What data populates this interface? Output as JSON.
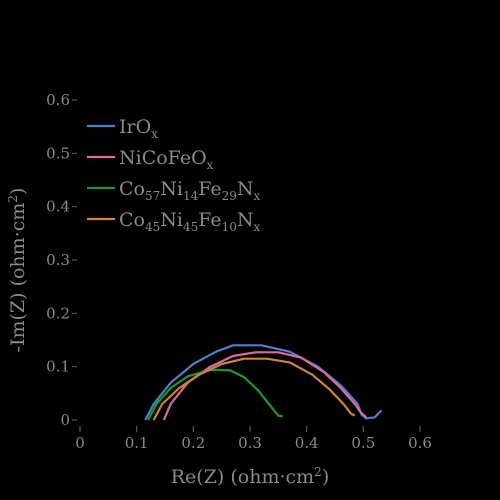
{
  "chart_data": {
    "type": "line",
    "xlabel": "Re(Z) (ohm·cm²)",
    "ylabel": "-Im(Z) (ohm·cm²)",
    "xlim": [
      0,
      0.6
    ],
    "ylim": [
      0,
      0.6
    ],
    "xticks": [
      "0",
      "0.1",
      "0.2",
      "0.3",
      "0.4",
      "0.5",
      "0.6"
    ],
    "yticks": [
      "0",
      "0.1",
      "0.2",
      "0.3",
      "0.4",
      "0.5",
      "0.6"
    ],
    "grid": false,
    "legend_position": "top-left",
    "series": [
      {
        "name": "IrOx",
        "label_parts": [
          [
            "Ir",
            ""
          ],
          [
            "O",
            ""
          ],
          [
            "x",
            "sub"
          ]
        ],
        "color": "#4a80ce",
        "points": [
          [
            0.115,
            0.0
          ],
          [
            0.13,
            0.03
          ],
          [
            0.16,
            0.07
          ],
          [
            0.2,
            0.105
          ],
          [
            0.24,
            0.128
          ],
          [
            0.27,
            0.14
          ],
          [
            0.32,
            0.14
          ],
          [
            0.37,
            0.128
          ],
          [
            0.42,
            0.1
          ],
          [
            0.46,
            0.065
          ],
          [
            0.49,
            0.03
          ],
          [
            0.497,
            0.01
          ],
          [
            0.505,
            0.003
          ],
          [
            0.52,
            0.005
          ],
          [
            0.532,
            0.018
          ]
        ]
      },
      {
        "name": "NiCoFeOx",
        "label_parts": [
          [
            "NiCoFeO",
            ""
          ],
          [
            "x",
            "sub"
          ]
        ],
        "color": "#e06aa0",
        "points": [
          [
            0.148,
            0.0
          ],
          [
            0.16,
            0.03
          ],
          [
            0.19,
            0.07
          ],
          [
            0.23,
            0.1
          ],
          [
            0.27,
            0.12
          ],
          [
            0.31,
            0.127
          ],
          [
            0.35,
            0.127
          ],
          [
            0.39,
            0.117
          ],
          [
            0.43,
            0.09
          ],
          [
            0.46,
            0.06
          ],
          [
            0.485,
            0.03
          ],
          [
            0.495,
            0.015
          ],
          [
            0.505,
            0.005
          ]
        ]
      },
      {
        "name": "Co57Ni14Fe29Nx",
        "label_parts": [
          [
            "Co",
            ""
          ],
          [
            "57",
            "sub"
          ],
          [
            "Ni",
            ""
          ],
          [
            "14",
            "sub"
          ],
          [
            "Fe",
            ""
          ],
          [
            "29",
            "sub"
          ],
          [
            "N",
            ""
          ],
          [
            "x",
            "sub"
          ]
        ],
        "color": "#1b9a2a",
        "points": [
          [
            0.12,
            0.0
          ],
          [
            0.135,
            0.03
          ],
          [
            0.16,
            0.06
          ],
          [
            0.19,
            0.082
          ],
          [
            0.23,
            0.094
          ],
          [
            0.265,
            0.093
          ],
          [
            0.29,
            0.08
          ],
          [
            0.315,
            0.055
          ],
          [
            0.335,
            0.028
          ],
          [
            0.35,
            0.008
          ],
          [
            0.358,
            0.007
          ]
        ]
      },
      {
        "name": "Co45Ni45Fe10Nx",
        "label_parts": [
          [
            "Co",
            ""
          ],
          [
            "45",
            "sub"
          ],
          [
            "Ni",
            ""
          ],
          [
            "45",
            "sub"
          ],
          [
            "Fe",
            ""
          ],
          [
            "10",
            "sub"
          ],
          [
            "N",
            ""
          ],
          [
            "x",
            "sub"
          ]
        ],
        "color": "#d2862a",
        "points": [
          [
            0.13,
            0.0
          ],
          [
            0.145,
            0.03
          ],
          [
            0.175,
            0.06
          ],
          [
            0.21,
            0.085
          ],
          [
            0.25,
            0.105
          ],
          [
            0.29,
            0.115
          ],
          [
            0.33,
            0.115
          ],
          [
            0.37,
            0.108
          ],
          [
            0.41,
            0.085
          ],
          [
            0.44,
            0.058
          ],
          [
            0.465,
            0.03
          ],
          [
            0.478,
            0.012
          ],
          [
            0.485,
            0.008
          ]
        ]
      }
    ]
  }
}
